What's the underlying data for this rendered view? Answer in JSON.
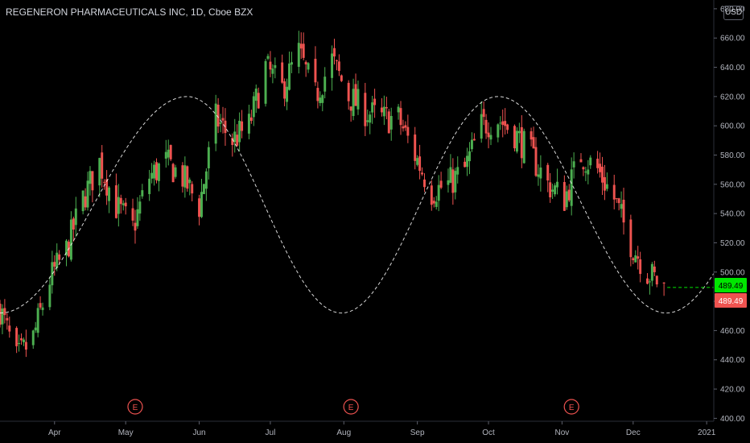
{
  "header": {
    "title": "REGENERON PHARMACEUTICALS INC, 1D, Cboe BZX",
    "currency": "USD"
  },
  "price_labels": {
    "last_green": "489.49",
    "last_red": "489.49"
  },
  "earnings_marker": "E",
  "colors": {
    "up": "#26a69a",
    "down": "#ef5350",
    "up_bright": "#4caf50",
    "background": "#000000",
    "cycle_line": "#ffffff",
    "label_green": "#00e600"
  },
  "chart_data": {
    "type": "candlestick",
    "title": "REGENERON PHARMACEUTICALS INC, 1D, Cboe BZX",
    "xlabel": "",
    "ylabel": "",
    "x_ticks": [
      "Apr",
      "May",
      "Jun",
      "Jul",
      "Aug",
      "Sep",
      "Oct",
      "Nov",
      "Dec",
      "2021"
    ],
    "y_ticks": [
      "400.00",
      "420.00",
      "440.00",
      "460.00",
      "480.00",
      "500.00",
      "520.00",
      "540.00",
      "560.00",
      "580.00",
      "600.00",
      "620.00",
      "640.00",
      "660.00",
      "680.00"
    ],
    "ylim": [
      398,
      686
    ],
    "x_range": [
      "2020-03-09",
      "2021-01-04"
    ],
    "last_price": 489.49,
    "earnings_dates": [
      "2020-05-05",
      "2020-08-04",
      "2020-11-05"
    ],
    "cycle_overlay": {
      "style": "dashed",
      "min": 472,
      "max": 620,
      "peaks": [
        "2020-05-27",
        "2020-10-05"
      ],
      "troughs": [
        "2020-03-09",
        "2020-07-31",
        "2020-12-15"
      ]
    },
    "price_path": [
      [
        "2020-03-09",
        475
      ],
      [
        "2020-03-16",
        440
      ],
      [
        "2020-03-23",
        455
      ],
      [
        "2020-03-30",
        495
      ],
      [
        "2020-04-06",
        515
      ],
      [
        "2020-04-13",
        550
      ],
      [
        "2020-04-20",
        575
      ],
      [
        "2020-04-27",
        545
      ],
      [
        "2020-05-04",
        530
      ],
      [
        "2020-05-11",
        565
      ],
      [
        "2020-05-18",
        575
      ],
      [
        "2020-05-25",
        565
      ],
      [
        "2020-06-01",
        545
      ],
      [
        "2020-06-08",
        605
      ],
      [
        "2020-06-15",
        590
      ],
      [
        "2020-06-22",
        600
      ],
      [
        "2020-06-29",
        640
      ],
      [
        "2020-07-06",
        625
      ],
      [
        "2020-07-13",
        650
      ],
      [
        "2020-07-20",
        620
      ],
      [
        "2020-07-27",
        645
      ],
      [
        "2020-08-03",
        620
      ],
      [
        "2020-08-10",
        610
      ],
      [
        "2020-08-17",
        605
      ],
      [
        "2020-08-24",
        605
      ],
      [
        "2020-08-31",
        580
      ],
      [
        "2020-09-07",
        555
      ],
      [
        "2020-09-14",
        560
      ],
      [
        "2020-09-21",
        570
      ],
      [
        "2020-09-28",
        600
      ],
      [
        "2020-10-05",
        605
      ],
      [
        "2020-10-12",
        595
      ],
      [
        "2020-10-19",
        580
      ],
      [
        "2020-10-26",
        560
      ],
      [
        "2020-11-02",
        550
      ],
      [
        "2020-11-09",
        580
      ],
      [
        "2020-11-16",
        570
      ],
      [
        "2020-11-23",
        550
      ],
      [
        "2020-11-30",
        520
      ],
      [
        "2020-12-07",
        500
      ],
      [
        "2020-12-14",
        489.49
      ]
    ]
  }
}
